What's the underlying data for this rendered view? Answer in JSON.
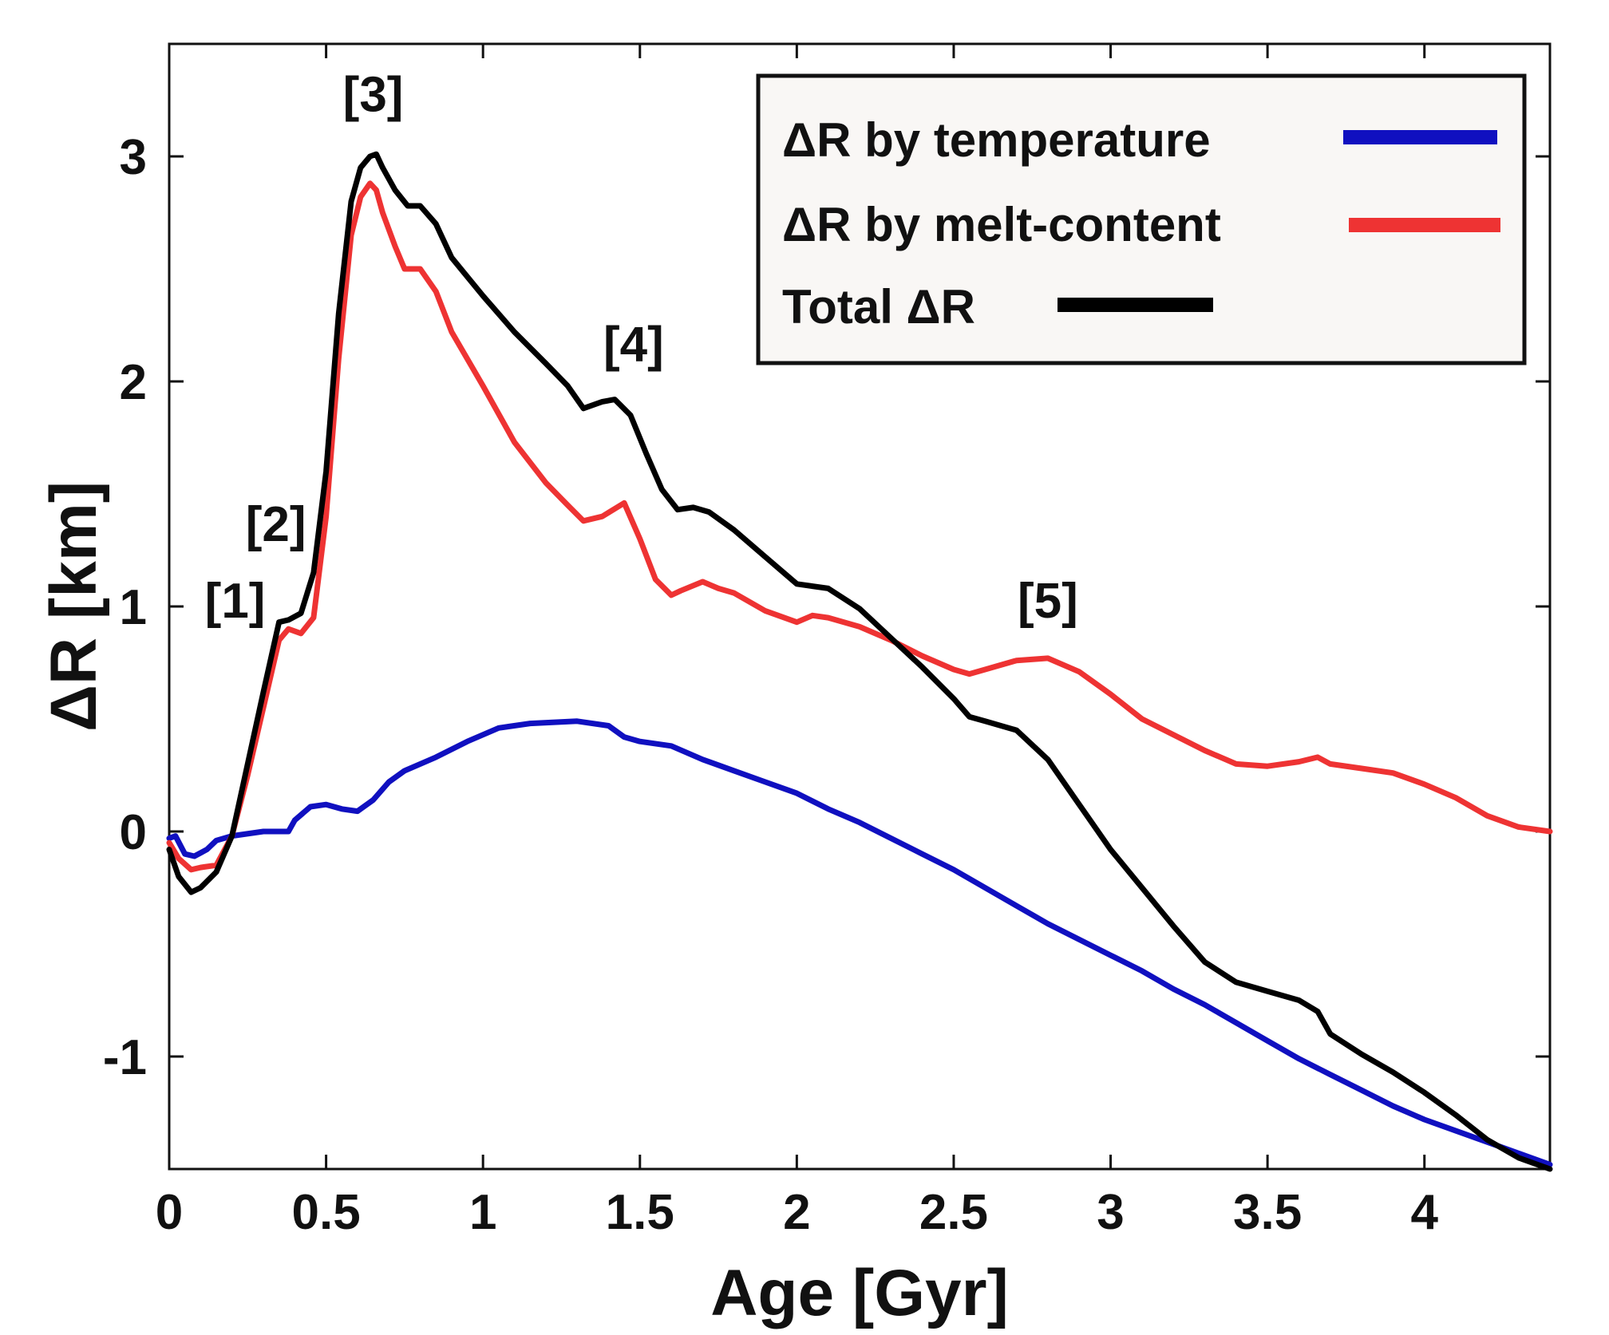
{
  "chart_data": {
    "type": "line",
    "xlabel": "Age [Gyr]",
    "ylabel": "ΔR [km]",
    "xlim": [
      0,
      4.4
    ],
    "ylim": [
      -1.5,
      3.5
    ],
    "xticks": [
      0,
      0.5,
      1,
      1.5,
      2,
      2.5,
      3,
      3.5,
      4
    ],
    "xtick_labels": [
      "0",
      "0.5",
      "1",
      "1.5",
      "2",
      "2.5",
      "3",
      "3.5",
      "4"
    ],
    "yticks": [
      -1,
      0,
      1,
      2,
      3
    ],
    "ytick_labels": [
      "-1",
      "0",
      "1",
      "2",
      "3"
    ],
    "grid": false,
    "legend_position": "top-right",
    "series": [
      {
        "name": "ΔR by temperature",
        "color": "#1010c0",
        "x": [
          0,
          0.02,
          0.05,
          0.08,
          0.12,
          0.15,
          0.2,
          0.3,
          0.38,
          0.4,
          0.45,
          0.5,
          0.55,
          0.6,
          0.65,
          0.7,
          0.75,
          0.85,
          0.95,
          1.05,
          1.15,
          1.3,
          1.4,
          1.45,
          1.5,
          1.6,
          1.7,
          1.8,
          1.9,
          2.0,
          2.1,
          2.2,
          2.3,
          2.4,
          2.5,
          2.6,
          2.7,
          2.8,
          2.9,
          3.0,
          3.1,
          3.2,
          3.3,
          3.4,
          3.5,
          3.6,
          3.7,
          3.8,
          3.9,
          4.0,
          4.1,
          4.2,
          4.3,
          4.4
        ],
        "y": [
          -0.03,
          -0.02,
          -0.1,
          -0.11,
          -0.08,
          -0.04,
          -0.02,
          0.0,
          0.0,
          0.05,
          0.11,
          0.12,
          0.1,
          0.09,
          0.14,
          0.22,
          0.27,
          0.33,
          0.4,
          0.46,
          0.48,
          0.49,
          0.47,
          0.42,
          0.4,
          0.38,
          0.32,
          0.27,
          0.22,
          0.17,
          0.1,
          0.04,
          -0.03,
          -0.1,
          -0.17,
          -0.25,
          -0.33,
          -0.41,
          -0.48,
          -0.55,
          -0.62,
          -0.7,
          -0.77,
          -0.85,
          -0.93,
          -1.01,
          -1.08,
          -1.15,
          -1.22,
          -1.28,
          -1.33,
          -1.38,
          -1.43,
          -1.48
        ]
      },
      {
        "name": "ΔR by melt-content",
        "color": "#ee3333",
        "x": [
          0,
          0.03,
          0.07,
          0.1,
          0.15,
          0.2,
          0.25,
          0.3,
          0.35,
          0.38,
          0.42,
          0.46,
          0.5,
          0.54,
          0.58,
          0.61,
          0.64,
          0.66,
          0.68,
          0.72,
          0.75,
          0.8,
          0.85,
          0.9,
          1.0,
          1.1,
          1.2,
          1.27,
          1.32,
          1.38,
          1.45,
          1.5,
          1.55,
          1.6,
          1.63,
          1.7,
          1.75,
          1.8,
          1.9,
          2.0,
          2.05,
          2.1,
          2.2,
          2.3,
          2.4,
          2.5,
          2.55,
          2.6,
          2.7,
          2.8,
          2.9,
          3.0,
          3.1,
          3.2,
          3.3,
          3.4,
          3.5,
          3.6,
          3.66,
          3.7,
          3.8,
          3.9,
          4.0,
          4.1,
          4.2,
          4.3,
          4.4
        ],
        "y": [
          -0.05,
          -0.12,
          -0.17,
          -0.16,
          -0.15,
          -0.02,
          0.25,
          0.55,
          0.85,
          0.9,
          0.88,
          0.95,
          1.4,
          2.1,
          2.65,
          2.82,
          2.88,
          2.85,
          2.75,
          2.6,
          2.5,
          2.5,
          2.4,
          2.22,
          1.98,
          1.73,
          1.55,
          1.45,
          1.38,
          1.4,
          1.46,
          1.3,
          1.12,
          1.05,
          1.07,
          1.11,
          1.08,
          1.06,
          0.98,
          0.93,
          0.96,
          0.95,
          0.91,
          0.85,
          0.78,
          0.72,
          0.7,
          0.72,
          0.76,
          0.77,
          0.71,
          0.61,
          0.5,
          0.43,
          0.36,
          0.3,
          0.29,
          0.31,
          0.33,
          0.3,
          0.28,
          0.26,
          0.21,
          0.15,
          0.07,
          0.02,
          0.0
        ]
      },
      {
        "name": "Total ΔR",
        "color": "#000000",
        "x": [
          0,
          0.03,
          0.07,
          0.1,
          0.15,
          0.2,
          0.25,
          0.3,
          0.35,
          0.38,
          0.42,
          0.46,
          0.5,
          0.54,
          0.58,
          0.61,
          0.64,
          0.66,
          0.68,
          0.72,
          0.76,
          0.8,
          0.85,
          0.9,
          1.0,
          1.1,
          1.2,
          1.27,
          1.32,
          1.38,
          1.42,
          1.47,
          1.52,
          1.57,
          1.62,
          1.67,
          1.72,
          1.8,
          1.9,
          2.0,
          2.05,
          2.1,
          2.2,
          2.3,
          2.4,
          2.5,
          2.55,
          2.6,
          2.7,
          2.8,
          2.9,
          3.0,
          3.1,
          3.2,
          3.3,
          3.4,
          3.5,
          3.6,
          3.66,
          3.7,
          3.8,
          3.9,
          4.0,
          4.1,
          4.2,
          4.3,
          4.4
        ],
        "y": [
          -0.08,
          -0.2,
          -0.27,
          -0.25,
          -0.18,
          -0.02,
          0.3,
          0.62,
          0.93,
          0.94,
          0.97,
          1.15,
          1.6,
          2.3,
          2.8,
          2.95,
          3.0,
          3.01,
          2.95,
          2.85,
          2.78,
          2.78,
          2.7,
          2.55,
          2.38,
          2.22,
          2.08,
          1.98,
          1.88,
          1.91,
          1.92,
          1.85,
          1.68,
          1.52,
          1.43,
          1.44,
          1.42,
          1.34,
          1.22,
          1.1,
          1.09,
          1.08,
          0.99,
          0.86,
          0.73,
          0.59,
          0.51,
          0.49,
          0.45,
          0.32,
          0.12,
          -0.08,
          -0.25,
          -0.42,
          -0.58,
          -0.67,
          -0.71,
          -0.75,
          -0.8,
          -0.9,
          -0.99,
          -1.07,
          -1.16,
          -1.26,
          -1.37,
          -1.45,
          -1.5
        ]
      }
    ],
    "annotations": [
      {
        "label": "[1]",
        "x": 0.21,
        "y": 0.95
      },
      {
        "label": "[2]",
        "x": 0.34,
        "y": 1.29
      },
      {
        "label": "[3]",
        "x": 0.65,
        "y": 3.2
      },
      {
        "label": "[4]",
        "x": 1.48,
        "y": 2.09
      },
      {
        "label": "[5]",
        "x": 2.8,
        "y": 0.95
      }
    ]
  }
}
